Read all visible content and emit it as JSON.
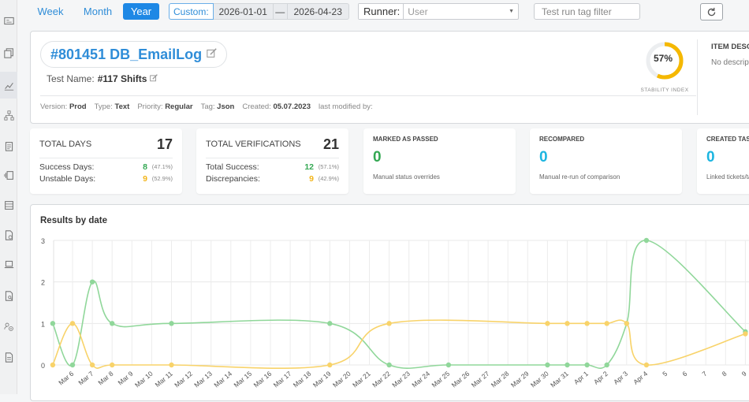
{
  "sidebar": {
    "icons": [
      "id-card-icon",
      "copy-icon",
      "chart-line-icon",
      "sitemap-icon",
      "clipboard-icon",
      "versions-icon",
      "list-icon",
      "file-gear-icon",
      "laptop-code-icon",
      "file-search-icon",
      "users-gear-icon",
      "document-icon"
    ]
  },
  "toolbar": {
    "range_week": "Week",
    "range_month": "Month",
    "range_year": "Year",
    "custom_label": "Custom:",
    "date_from": "2026-01-01",
    "date_separator": "—",
    "date_to": "2026-04-23",
    "runner_label": "Runner:",
    "runner_placeholder": "User",
    "tag_filter_placeholder": "Test run tag filter"
  },
  "header": {
    "title": "#801451 DB_EmailLog",
    "test_name_label": "Test Name:",
    "test_name_value": "#117 Shifts",
    "stability_percent": "57%",
    "stability_value": 0.57,
    "stability_label": "STABILITY INDEX",
    "item_desc_title": "ITEM DESCRIPTION",
    "item_desc_text": "No description",
    "meta": {
      "version_label": "Version:",
      "version_value": "Prod",
      "type_label": "Type:",
      "type_value": "Text",
      "priority_label": "Priority:",
      "priority_value": "Regular",
      "tag_label": "Tag:",
      "tag_value": "Json",
      "created_label": "Created:",
      "created_value": "05.07.2023",
      "modified_label": "last modified by:"
    }
  },
  "stats": {
    "total_days": {
      "title": "TOTAL DAYS",
      "value": "17",
      "rows": [
        {
          "label": "Success Days:",
          "num": "8",
          "pct": "(47.1%)"
        },
        {
          "label": "Unstable Days:",
          "num": "9",
          "pct": "(52.9%)"
        }
      ]
    },
    "total_verifications": {
      "title": "TOTAL VERIFICATIONS",
      "value": "21",
      "rows": [
        {
          "label": "Total Success:",
          "num": "12",
          "pct": "(57.1%)"
        },
        {
          "label": "Discrepancies:",
          "num": "9",
          "pct": "(42.9%)"
        }
      ]
    },
    "marked_passed": {
      "title": "MARKED AS PASSED",
      "value": "0",
      "sub": "Manual status overrides"
    },
    "recompared": {
      "title": "RECOMPARED",
      "value": "0",
      "sub": "Manual re-run of comparison"
    },
    "created_tasks": {
      "title": "CREATED TASKS",
      "value": "0",
      "sub": "Linked tickets/tasks"
    }
  },
  "colors": {
    "accent": "#1e88e5",
    "success": "#34a853",
    "warning": "#f2b418",
    "info": "#1cb5e0",
    "green_line": "#90d79a",
    "yellow_line": "#f8d36a"
  },
  "chart_data": {
    "type": "line",
    "title": "Results by date",
    "ylim": [
      0,
      3
    ],
    "yticks": [
      "0",
      "1",
      "2",
      "3"
    ],
    "categories": [
      "Mar 6",
      "Mar 7",
      "Mar 8",
      "Mar 9",
      "Mar 10",
      "Mar 11",
      "Mar 12",
      "Mar 13",
      "Mar 14",
      "Mar 15",
      "Mar 16",
      "Mar 17",
      "Mar 18",
      "Mar 19",
      "Mar 20",
      "Mar 21",
      "Mar 22",
      "Mar 23",
      "Mar 24",
      "Mar 25",
      "Mar 26",
      "Mar 27",
      "Mar 28",
      "Mar 29",
      "Mar 30",
      "Mar 31",
      "Apr 1",
      "Apr 2",
      "Apr 3",
      "Apr 4",
      "5",
      "6",
      "7",
      "8",
      "9"
    ],
    "series": [
      {
        "color": "#90d79a",
        "points": [
          [
            -1,
            1
          ],
          [
            0,
            0
          ],
          [
            1,
            2
          ],
          [
            2,
            1
          ],
          [
            5,
            1
          ],
          [
            13,
            1
          ],
          [
            16,
            0
          ],
          [
            19,
            0
          ],
          [
            24,
            0
          ],
          [
            25,
            0
          ],
          [
            26,
            0
          ],
          [
            27,
            0
          ],
          [
            28,
            1
          ],
          [
            29,
            3
          ],
          [
            34,
            0.8
          ]
        ]
      },
      {
        "color": "#f8d36a",
        "points": [
          [
            -1,
            0
          ],
          [
            0,
            1
          ],
          [
            1,
            0
          ],
          [
            2,
            0
          ],
          [
            5,
            0
          ],
          [
            13,
            0
          ],
          [
            16,
            1
          ],
          [
            24,
            1
          ],
          [
            25,
            1
          ],
          [
            26,
            1
          ],
          [
            27,
            1
          ],
          [
            28,
            1
          ],
          [
            29,
            0
          ],
          [
            34,
            0.75
          ]
        ]
      }
    ],
    "grid": true,
    "legend": "none"
  }
}
